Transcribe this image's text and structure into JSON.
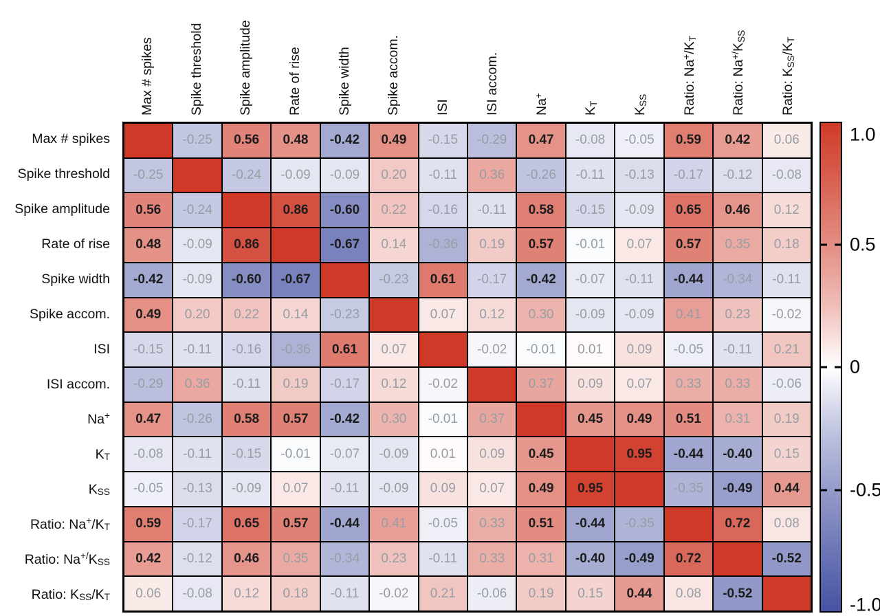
{
  "figure": {
    "background": "#ffffff",
    "kind": "correlation-matrix-heatmap"
  },
  "chart_data": {
    "type": "heatmap",
    "title": "",
    "xlabel": "",
    "ylabel": "",
    "grid_on": false,
    "legend_position": "right-colorbar",
    "categories": [
      "Max # spikes",
      "Spike threshold",
      "Spike amplitude",
      "Rate of rise",
      "Spike width",
      "Spike accom.",
      "ISI",
      "ISI accom.",
      "Na+",
      "KT",
      "KSS",
      "Ratio: Na+/KT",
      "Ratio: Na+/KSS",
      "Ratio: KSS/KT"
    ],
    "categories_display": [
      "Max # spikes",
      "Spike threshold",
      "Spike amplitude",
      "Rate of rise",
      "Spike width",
      "Spike accom.",
      "ISI",
      "ISI accom.",
      "Na^{+}",
      "K_{T}",
      "K_{SS}",
      "Ratio: Na^{+}/K_{T}",
      "Ratio: Na^{+/}K_{SS}",
      "Ratio: K_{SS}/K_{T}"
    ],
    "matrix": [
      [
        null,
        -0.25,
        0.56,
        0.48,
        -0.42,
        0.49,
        -0.15,
        -0.29,
        0.47,
        -0.08,
        -0.05,
        0.59,
        0.42,
        0.06
      ],
      [
        -0.25,
        null,
        -0.24,
        -0.09,
        -0.09,
        0.2,
        -0.11,
        0.36,
        -0.26,
        -0.11,
        -0.13,
        -0.17,
        -0.12,
        -0.08
      ],
      [
        0.56,
        -0.24,
        null,
        0.86,
        -0.6,
        0.22,
        -0.16,
        -0.11,
        0.58,
        -0.15,
        -0.09,
        0.65,
        0.46,
        0.12
      ],
      [
        0.48,
        -0.09,
        0.86,
        null,
        -0.67,
        0.14,
        -0.36,
        0.19,
        0.57,
        -0.01,
        0.07,
        0.57,
        0.35,
        0.18
      ],
      [
        -0.42,
        -0.09,
        -0.6,
        -0.67,
        null,
        -0.23,
        0.61,
        -0.17,
        -0.42,
        -0.07,
        -0.11,
        -0.44,
        -0.34,
        -0.11
      ],
      [
        0.49,
        0.2,
        0.22,
        0.14,
        -0.23,
        null,
        0.07,
        0.12,
        0.3,
        -0.09,
        -0.09,
        0.41,
        0.23,
        -0.02
      ],
      [
        -0.15,
        -0.11,
        -0.16,
        -0.36,
        0.61,
        0.07,
        null,
        -0.02,
        -0.01,
        0.01,
        0.09,
        -0.05,
        -0.11,
        0.21
      ],
      [
        -0.29,
        0.36,
        -0.11,
        0.19,
        -0.17,
        0.12,
        -0.02,
        null,
        0.37,
        0.09,
        0.07,
        0.33,
        0.33,
        -0.06
      ],
      [
        0.47,
        -0.26,
        0.58,
        0.57,
        -0.42,
        0.3,
        -0.01,
        0.37,
        null,
        0.45,
        0.49,
        0.51,
        0.31,
        0.19
      ],
      [
        -0.08,
        -0.11,
        -0.15,
        -0.01,
        -0.07,
        -0.09,
        0.01,
        0.09,
        0.45,
        null,
        0.95,
        -0.44,
        -0.4,
        0.15
      ],
      [
        -0.05,
        -0.13,
        -0.09,
        0.07,
        -0.11,
        -0.09,
        0.09,
        0.07,
        0.49,
        0.95,
        null,
        -0.35,
        -0.49,
        0.44
      ],
      [
        0.59,
        -0.17,
        0.65,
        0.57,
        -0.44,
        0.41,
        -0.05,
        0.33,
        0.51,
        -0.44,
        -0.35,
        null,
        0.72,
        0.08
      ],
      [
        0.42,
        -0.12,
        0.46,
        0.35,
        -0.34,
        0.23,
        -0.11,
        0.33,
        0.31,
        -0.4,
        -0.49,
        0.72,
        null,
        -0.52
      ],
      [
        0.06,
        -0.08,
        0.12,
        0.18,
        -0.11,
        -0.02,
        0.21,
        -0.06,
        0.19,
        0.15,
        0.44,
        0.08,
        -0.52,
        null
      ]
    ],
    "bold": [
      [
        0,
        0,
        1,
        1,
        1,
        1,
        0,
        0,
        1,
        0,
        0,
        1,
        1,
        0
      ],
      [
        0,
        0,
        0,
        0,
        0,
        0,
        0,
        0,
        0,
        0,
        0,
        0,
        0,
        0
      ],
      [
        1,
        0,
        0,
        1,
        1,
        0,
        0,
        0,
        1,
        0,
        0,
        1,
        1,
        0
      ],
      [
        1,
        0,
        1,
        0,
        1,
        0,
        0,
        0,
        1,
        0,
        0,
        1,
        0,
        0
      ],
      [
        1,
        0,
        1,
        1,
        0,
        0,
        1,
        0,
        1,
        0,
        0,
        1,
        0,
        0
      ],
      [
        1,
        0,
        0,
        0,
        0,
        0,
        0,
        0,
        0,
        0,
        0,
        0,
        0,
        0
      ],
      [
        0,
        0,
        0,
        0,
        1,
        0,
        0,
        0,
        0,
        0,
        0,
        0,
        0,
        0
      ],
      [
        0,
        0,
        0,
        0,
        0,
        0,
        0,
        0,
        0,
        0,
        0,
        0,
        0,
        0
      ],
      [
        1,
        0,
        1,
        1,
        1,
        0,
        0,
        0,
        0,
        1,
        1,
        1,
        0,
        0
      ],
      [
        0,
        0,
        0,
        0,
        0,
        0,
        0,
        0,
        1,
        0,
        1,
        1,
        1,
        0
      ],
      [
        0,
        0,
        0,
        0,
        0,
        0,
        0,
        0,
        1,
        1,
        0,
        0,
        1,
        1
      ],
      [
        1,
        0,
        1,
        1,
        1,
        0,
        0,
        0,
        1,
        1,
        0,
        0,
        1,
        0
      ],
      [
        1,
        0,
        1,
        0,
        0,
        0,
        0,
        0,
        0,
        1,
        1,
        1,
        0,
        1
      ],
      [
        0,
        0,
        0,
        0,
        0,
        0,
        0,
        0,
        0,
        0,
        1,
        0,
        1,
        0
      ]
    ],
    "value_format_decimals": 2,
    "colorbar": {
      "ticks": [
        "1.0",
        "0.5",
        "0",
        "-0.5",
        "-1.0"
      ],
      "tick_values": [
        1.0,
        0.5,
        0,
        -0.5,
        -1.0
      ],
      "min": -1.0,
      "max": 1.0
    },
    "colors": {
      "positive_max": "#cf3a28",
      "negative_max": "#4753a3",
      "zero": "#ffffff",
      "gradient_stops": [
        "#cf3a28",
        "#d96354",
        "#e38e84",
        "#efbeb8",
        "#ffffff",
        "#c2c6e1",
        "#959cca",
        "#6d76b6",
        "#4753a3"
      ],
      "grid_line": "#000000",
      "bold_text": "#1c1c1c",
      "gray_text": "#979da4",
      "label_text": "#111111"
    }
  }
}
